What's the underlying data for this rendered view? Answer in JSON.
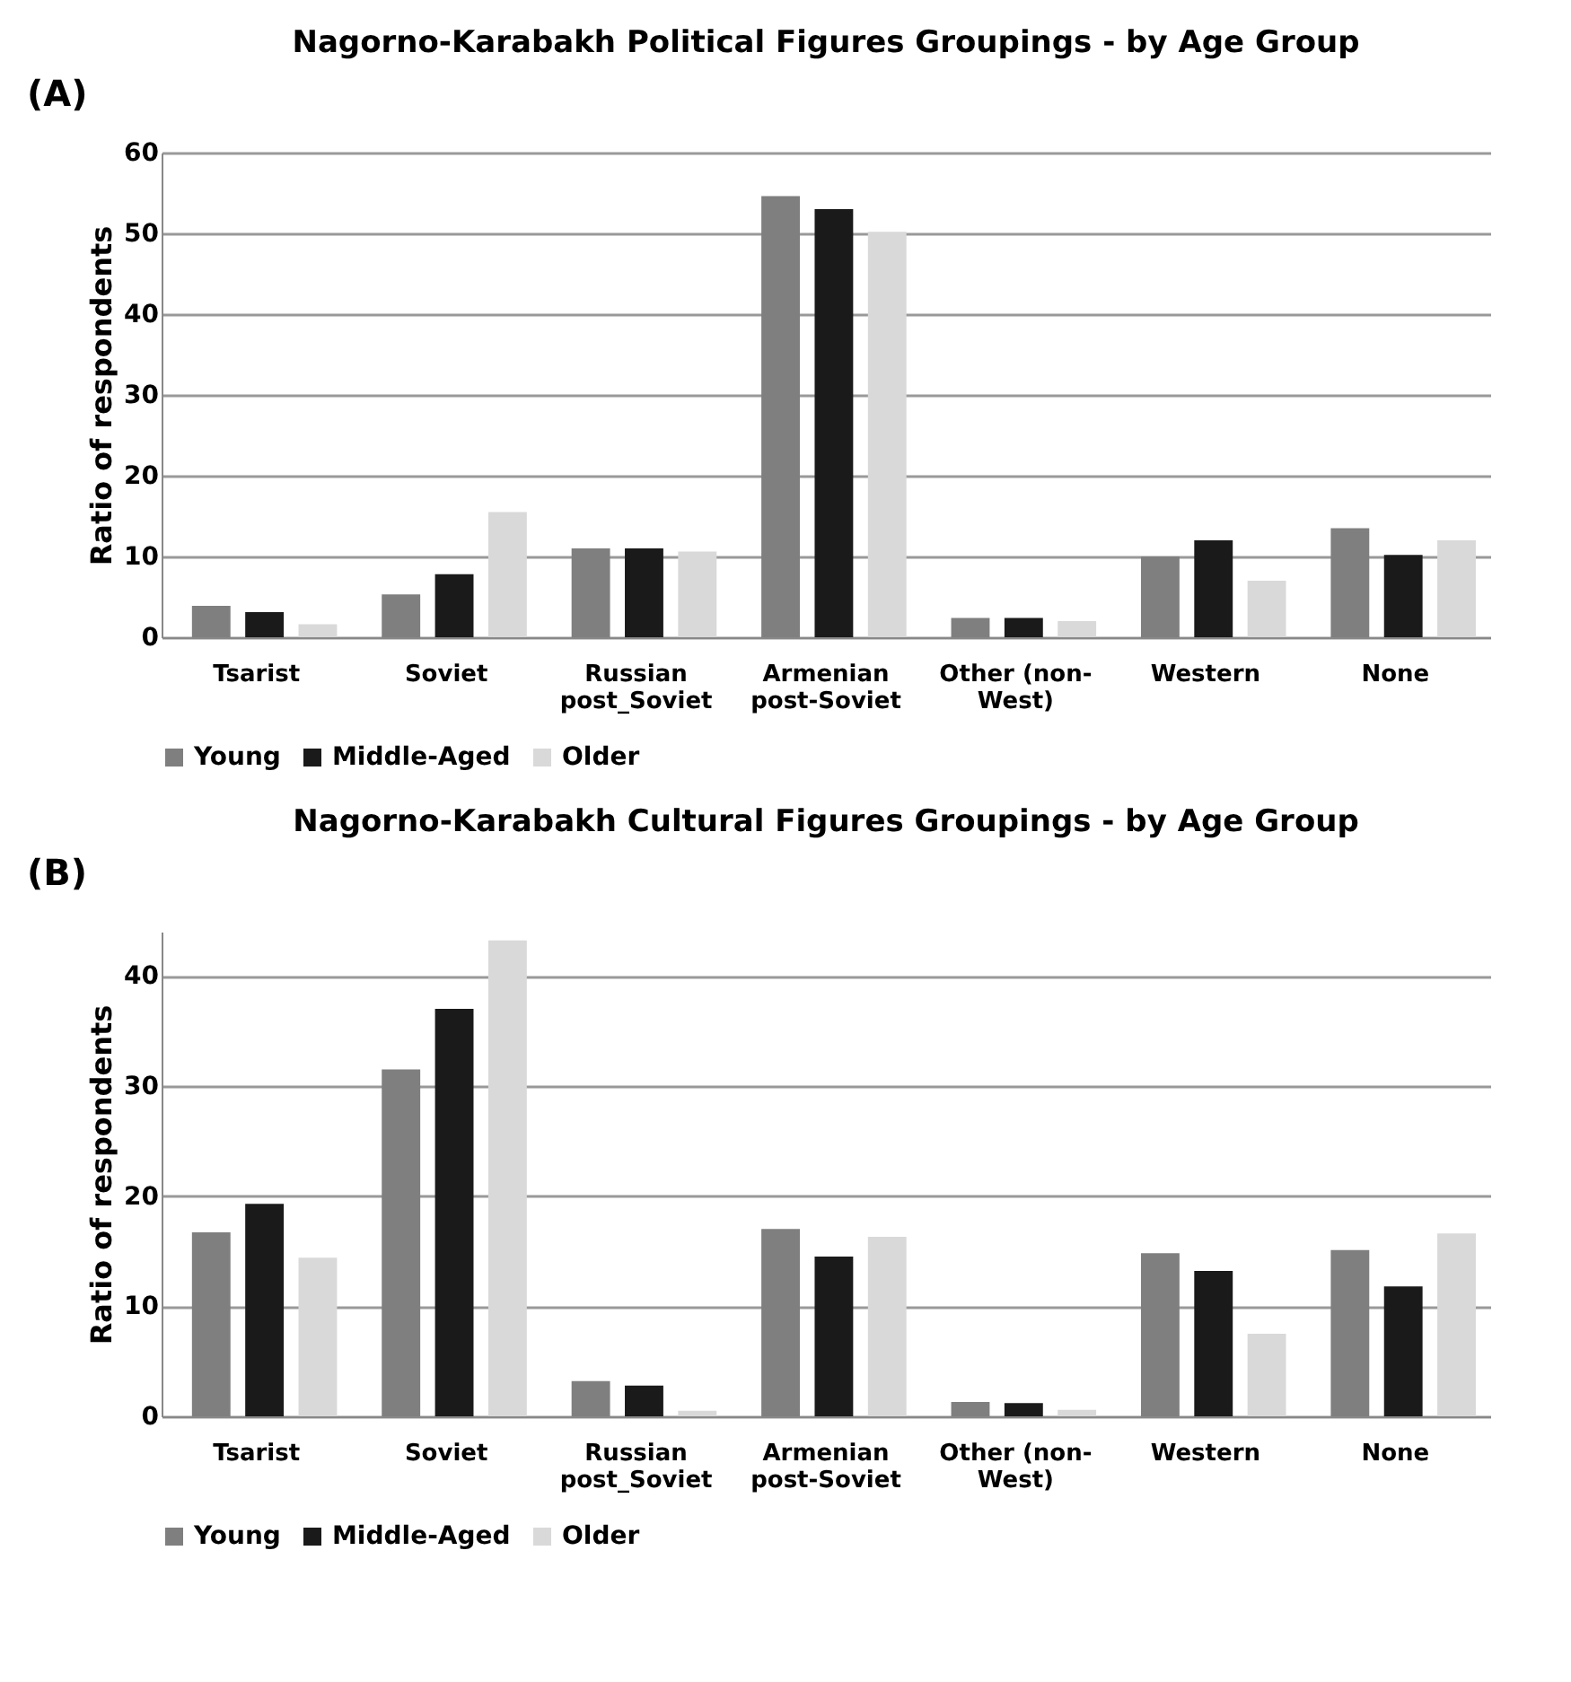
{
  "chart_data": [
    {
      "type": "bar",
      "title": "Nagorno-Karabakh Political Figures Groupings - by Age Group",
      "ylabel": "Ratio of respondents",
      "annotations": [
        "(A)"
      ],
      "categories": [
        "Tsarist",
        "Soviet",
        "Russian\npost_Soviet",
        "Armenian\npost-Soviet",
        "Other (non-\nWest)",
        "Western",
        "None"
      ],
      "series": [
        {
          "name": "Young",
          "color": "#7f7f7f",
          "values": [
            3.9,
            5.3,
            11,
            54.6,
            2.4,
            10,
            13.5
          ]
        },
        {
          "name": "Middle-Aged",
          "color": "#1a1a1a",
          "values": [
            3.1,
            7.8,
            11,
            53,
            2.4,
            12,
            10.2
          ]
        },
        {
          "name": "Older",
          "color": "#d9d9d9",
          "values": [
            1.6,
            15.5,
            10.6,
            50.2,
            2,
            7,
            12
          ]
        }
      ],
      "ylim": [
        0,
        60
      ],
      "yticks": [
        0,
        10,
        20,
        30,
        40,
        50,
        60
      ],
      "grid": "y",
      "legend": "bottom"
    },
    {
      "type": "bar",
      "title": "Nagorno-Karabakh Cultural Figures Groupings - by Age Group",
      "ylabel": "Ratio of respondents",
      "annotations": [
        "(B)"
      ],
      "categories": [
        "Tsarist",
        "Soviet",
        "Russian\npost_Soviet",
        "Armenian\npost-Soviet",
        "Other (non-\nWest)",
        "Western",
        "None"
      ],
      "series": [
        {
          "name": "Young",
          "color": "#7f7f7f",
          "values": [
            16.7,
            31.5,
            3.2,
            17,
            1.3,
            14.8,
            15.1
          ]
        },
        {
          "name": "Middle-Aged",
          "color": "#1a1a1a",
          "values": [
            19.3,
            37,
            2.8,
            14.5,
            1.2,
            13.2,
            11.8
          ]
        },
        {
          "name": "Older",
          "color": "#d9d9d9",
          "values": [
            14.4,
            43.2,
            0.5,
            16.3,
            0.6,
            7.5,
            16.6
          ]
        }
      ],
      "ylim": [
        0,
        44
      ],
      "yticks": [
        0,
        10,
        20,
        30,
        40
      ],
      "grid": "y",
      "legend": "bottom"
    }
  ]
}
